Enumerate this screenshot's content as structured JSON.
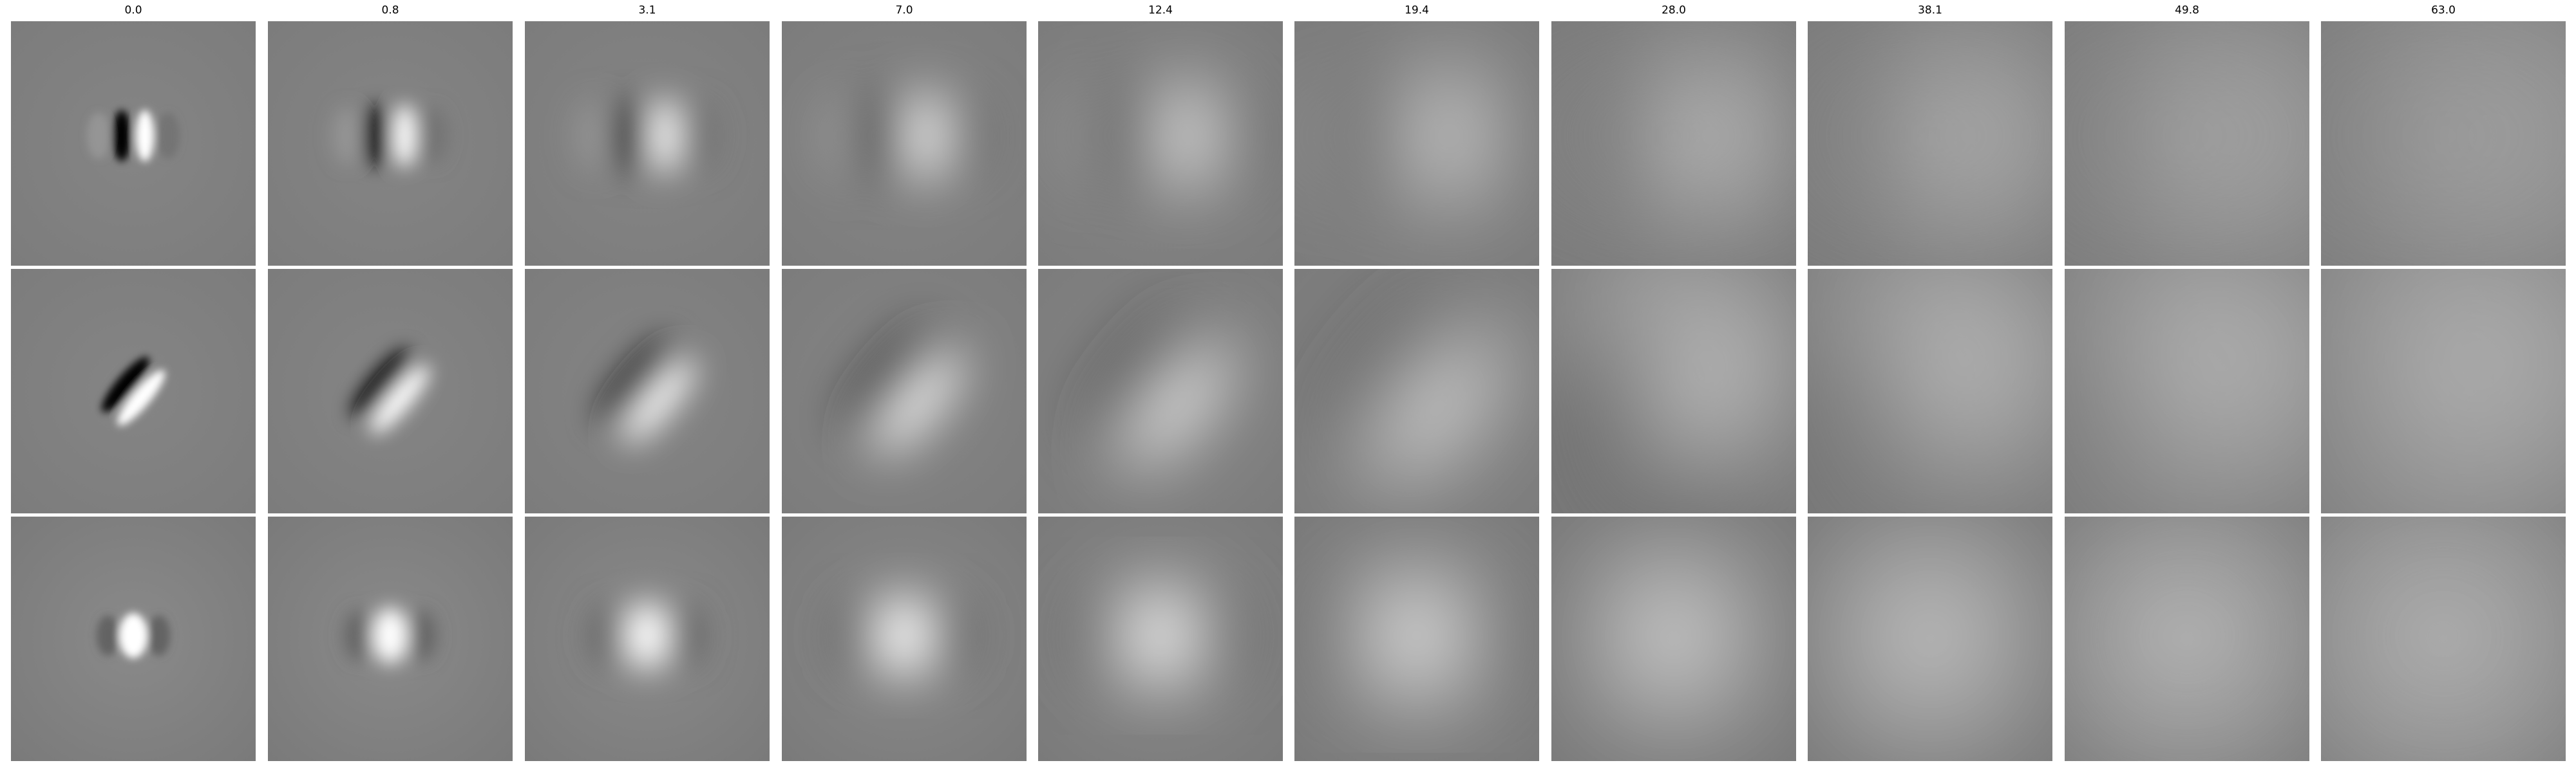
{
  "figure": {
    "column_titles": [
      "0.0",
      "0.8",
      "3.1",
      "7.0",
      "12.4",
      "19.4",
      "28.0",
      "38.1",
      "49.8",
      "63.0"
    ],
    "rows": [
      {
        "kind": "odd-vertical",
        "blob_axis_angle_deg": 0,
        "panels": [
          {
            "scale": 0.0
          },
          {
            "scale": 0.8
          },
          {
            "scale": 3.1
          },
          {
            "scale": 7.0
          },
          {
            "scale": 12.4
          },
          {
            "scale": 19.4
          },
          {
            "scale": 28.0
          },
          {
            "scale": 38.1
          },
          {
            "scale": 49.8
          },
          {
            "scale": 63.0
          }
        ]
      },
      {
        "kind": "odd-diagonal",
        "blob_axis_angle_deg": 40,
        "panels": [
          {
            "scale": 0.0
          },
          {
            "scale": 0.8
          },
          {
            "scale": 3.1
          },
          {
            "scale": 7.0
          },
          {
            "scale": 12.4
          },
          {
            "scale": 19.4
          },
          {
            "scale": 28.0
          },
          {
            "scale": 38.1
          },
          {
            "scale": 49.8
          },
          {
            "scale": 63.0
          }
        ]
      },
      {
        "kind": "even-center",
        "blob_axis_angle_deg": 0,
        "panels": [
          {
            "scale": 0.0
          },
          {
            "scale": 0.8
          },
          {
            "scale": 3.1
          },
          {
            "scale": 7.0
          },
          {
            "scale": 12.4
          },
          {
            "scale": 19.4
          },
          {
            "scale": 28.0
          },
          {
            "scale": 38.1
          },
          {
            "scale": 49.8
          },
          {
            "scale": 63.0
          }
        ]
      }
    ],
    "colors": {
      "background": "#ffffff",
      "panel_gray": "#808080",
      "black": "#000000",
      "white": "#ffffff"
    },
    "colormap": "gray"
  }
}
